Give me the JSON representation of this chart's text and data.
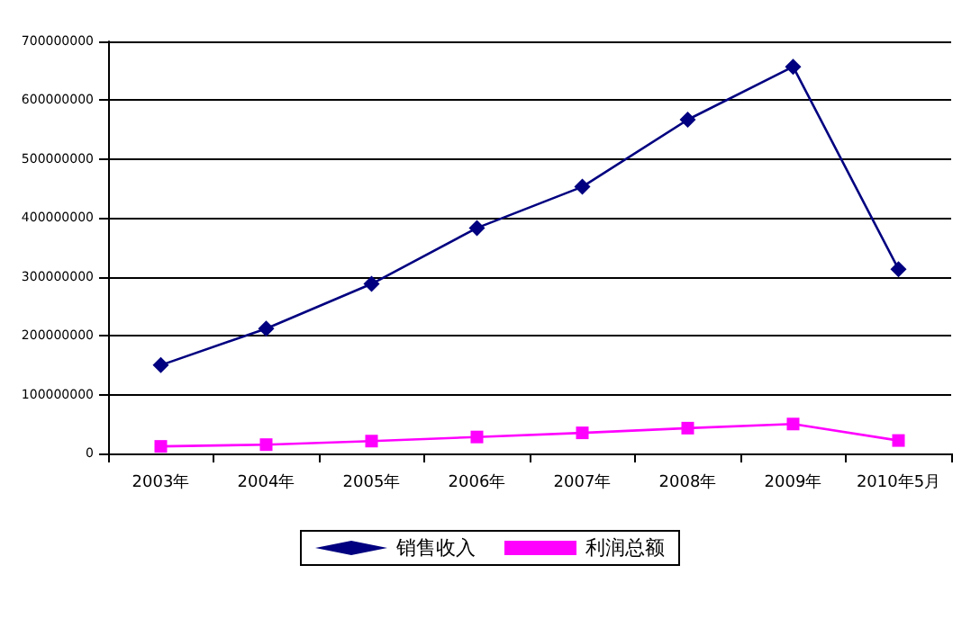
{
  "chart_data": {
    "type": "line",
    "categories": [
      "2003年",
      "2004年",
      "2005年",
      "2006年",
      "2007年",
      "2008年",
      "2009年",
      "2010年5月"
    ],
    "series": [
      {
        "name": "销售收入",
        "color": "#000080",
        "marker": "diamond",
        "values": [
          150000000,
          212000000,
          288000000,
          383000000,
          453000000,
          567000000,
          657000000,
          313000000
        ]
      },
      {
        "name": "利润总额",
        "color": "#ff00ff",
        "marker": "square",
        "values": [
          12000000,
          15000000,
          21000000,
          28000000,
          35000000,
          43000000,
          50000000,
          22000000
        ]
      }
    ],
    "ylim": [
      0,
      700000000
    ],
    "yticks": [
      0,
      100000000,
      200000000,
      300000000,
      400000000,
      500000000,
      600000000,
      700000000
    ],
    "grid": "y",
    "legend": "bottom"
  }
}
